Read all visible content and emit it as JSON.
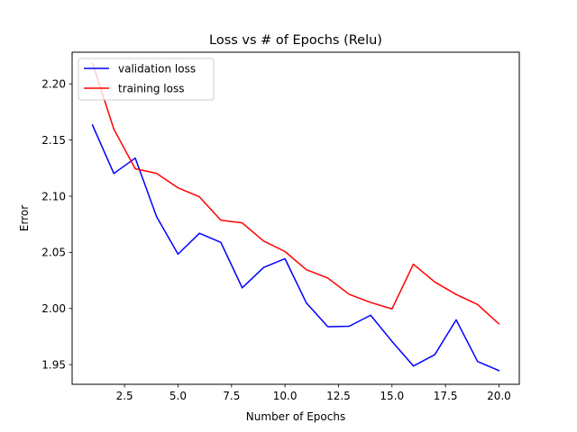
{
  "chart_data": {
    "type": "line",
    "title": "Loss vs # of Epochs (Relu)",
    "xlabel": "Number of Epochs",
    "ylabel": "Error",
    "xlim": [
      0.05,
      20.95
    ],
    "ylim": [
      1.9325,
      2.2282
    ],
    "xticks": [
      "2.5",
      "5.0",
      "7.5",
      "10.0",
      "12.5",
      "15.0",
      "17.5",
      "20.0"
    ],
    "yticks": [
      "1.95",
      "2.00",
      "2.05",
      "2.10",
      "2.15",
      "2.20"
    ],
    "grid": false,
    "legend_position": "top-left",
    "x": [
      1,
      2,
      3,
      4,
      5,
      6,
      7,
      8,
      9,
      10,
      11,
      12,
      13,
      14,
      15,
      16,
      17,
      18,
      19,
      20
    ],
    "series": [
      {
        "name": "validation loss",
        "color": "#0000ff",
        "values": [
          2.1634,
          2.1202,
          2.1339,
          2.0817,
          2.0484,
          2.067,
          2.0589,
          2.0184,
          2.0365,
          2.0443,
          2.0049,
          1.9838,
          1.9842,
          1.994,
          1.9707,
          1.9488,
          1.9589,
          1.9899,
          1.9528,
          1.9447
        ]
      },
      {
        "name": "training loss",
        "color": "#ff0000",
        "values": [
          2.2184,
          2.1597,
          2.1244,
          2.1203,
          2.1074,
          2.0994,
          2.0786,
          2.0762,
          2.0601,
          2.0507,
          2.0345,
          2.0271,
          2.0126,
          2.0054,
          1.9996,
          2.0394,
          2.0236,
          2.0125,
          2.0036,
          1.9862
        ]
      }
    ]
  }
}
